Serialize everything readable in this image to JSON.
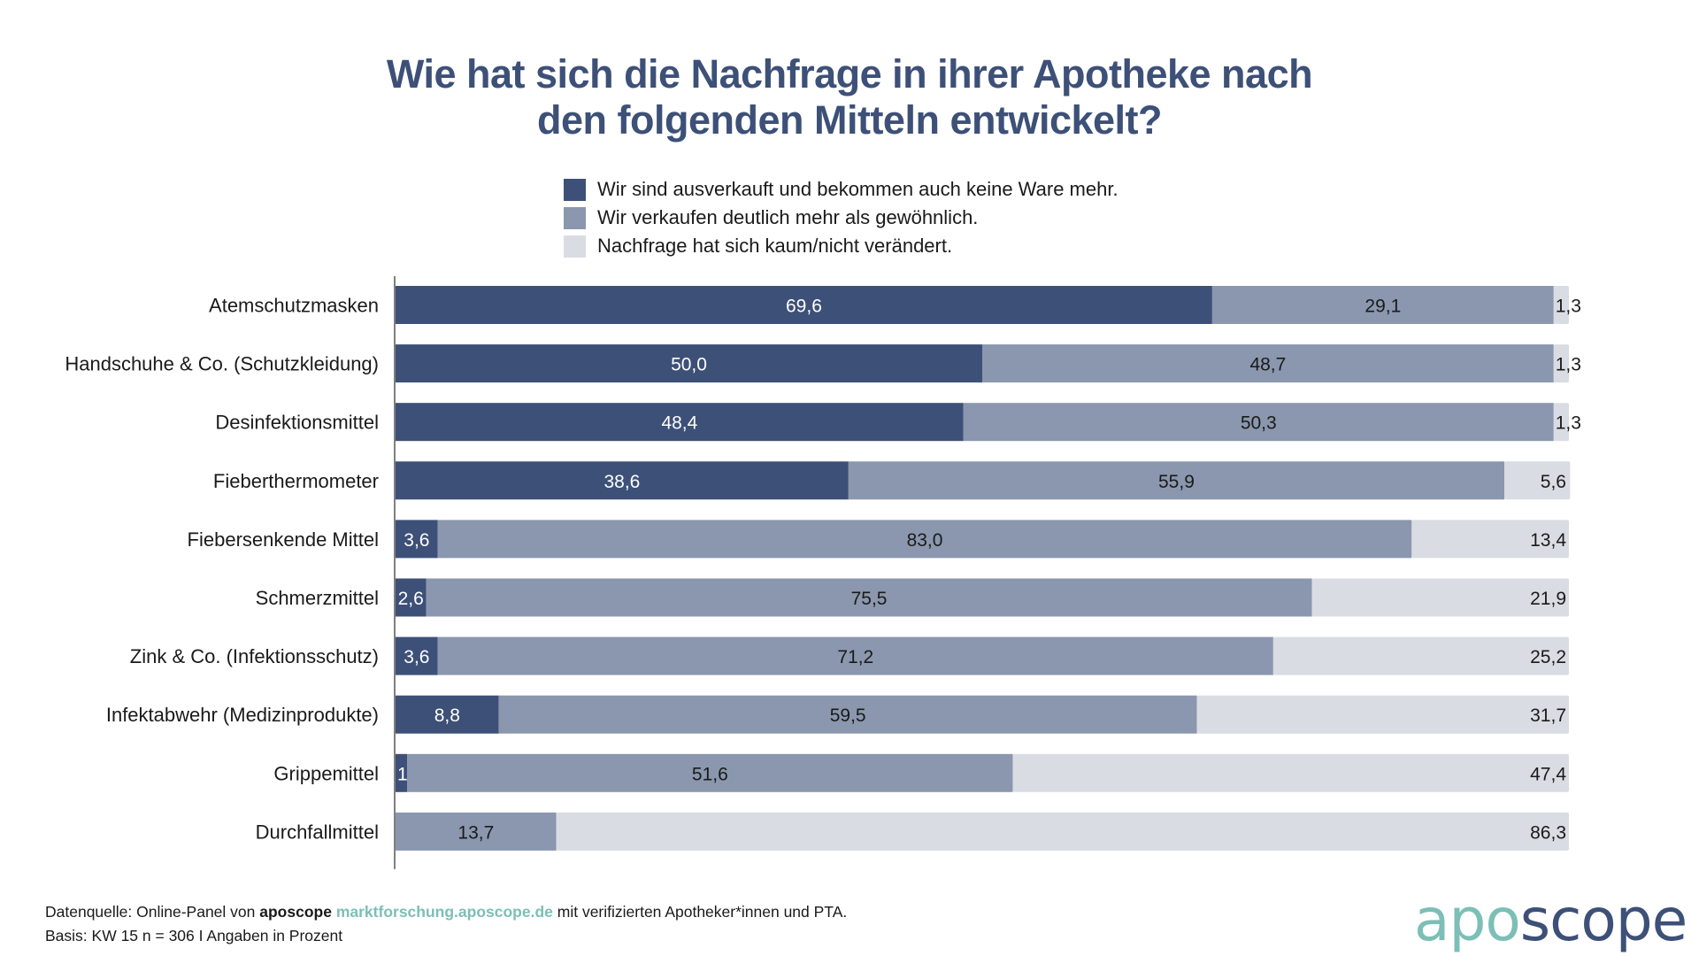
{
  "title": {
    "line1": "Wie hat sich die Nachfrage in ihrer Apotheke nach",
    "line2": "den folgenden Mitteln entwickelt?"
  },
  "colors": {
    "title": "#3d5078",
    "series": [
      "#3d5078",
      "#8a97ae",
      "#d9dce3"
    ],
    "label_on_dark": "#ffffff",
    "label_on_light": "#1a1a1a",
    "axis": "#555555",
    "logo_apo": "#7cbfb6",
    "logo_scope": "#3d5078",
    "link": "#7cbfb6"
  },
  "footer": {
    "source_prefix": "Datenquelle: Online-Panel von ",
    "source_brand": "aposcope",
    "source_link": "marktforschung.aposcope.de",
    "source_suffix": " mit verifizierten Apotheker*innen und PTA.",
    "basis": "Basis: KW 15 n = 306 I Angaben in Prozent"
  },
  "logo": {
    "part1": "apo",
    "part2": "scope"
  },
  "chart_data": {
    "type": "bar",
    "orientation": "horizontal",
    "stacked": true,
    "title": "Wie hat sich die Nachfrage in ihrer Apotheke nach den folgenden Mitteln entwickelt?",
    "xlabel": "",
    "ylabel": "",
    "xlim": [
      0,
      100
    ],
    "grid": false,
    "legend_position": "top-center",
    "decimal_separator": ",",
    "categories": [
      "Atemschutzmasken",
      "Handschuhe & Co. (Schutzkleidung)",
      "Desinfektionsmittel",
      "Fieberthermometer",
      "Fiebersenkende Mittel",
      "Schmerzmittel",
      "Zink & Co. (Infektionsschutz)",
      "Infektabwehr (Medizinprodukte)",
      "Grippemittel",
      "Durchfallmittel"
    ],
    "series": [
      {
        "name": "Wir sind ausverkauft und bekommen auch keine Ware mehr.",
        "values": [
          69.6,
          50.0,
          48.4,
          38.6,
          3.6,
          2.6,
          3.6,
          8.8,
          1.0,
          0.0
        ]
      },
      {
        "name": "Wir verkaufen deutlich mehr als gewöhnlich.",
        "values": [
          29.1,
          48.7,
          50.3,
          55.9,
          83.0,
          75.5,
          71.2,
          59.5,
          51.6,
          13.7
        ]
      },
      {
        "name": "Nachfrage hat sich kaum/nicht verändert.",
        "values": [
          1.3,
          1.3,
          1.3,
          5.6,
          13.4,
          21.9,
          25.2,
          31.7,
          47.4,
          86.3
        ]
      }
    ]
  }
}
